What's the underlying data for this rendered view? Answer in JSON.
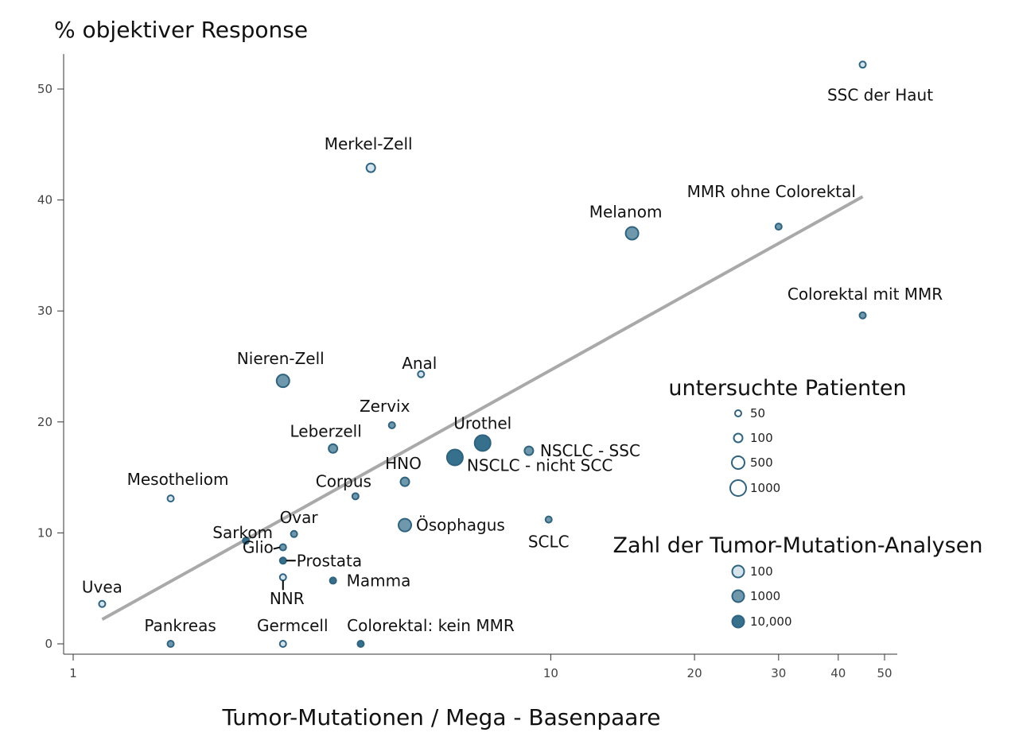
{
  "chart_data": {
    "type": "scatter",
    "ylabel": "% objektiver Response",
    "xlabel": "Tumor-Mutationen / Mega - Basenpaare",
    "x_scale": "log",
    "xlim": [
      1,
      50
    ],
    "ylim": [
      0,
      52
    ],
    "x_ticks": [
      1,
      10,
      20,
      30,
      40,
      50
    ],
    "y_ticks": [
      0,
      10,
      20,
      30,
      40,
      50
    ],
    "colors": {
      "edge": "#2f637f",
      "fill_low": "#d4e3ec",
      "fill_mid": "#6f98ad",
      "fill_high": "#36708c",
      "trend": "#a9a9a9"
    },
    "points": [
      {
        "label": "SSC der Haut",
        "x": 45.0,
        "y": 52.2,
        "patients": 50,
        "analyses": 100
      },
      {
        "label": "Merkel-Zell",
        "x": 4.2,
        "y": 42.9,
        "patients": 100,
        "analyses": 100
      },
      {
        "label": "MMR ohne Colorektal",
        "x": 30.0,
        "y": 37.6,
        "patients": 50,
        "analyses": 1000
      },
      {
        "label": "Melanom",
        "x": 14.8,
        "y": 37.0,
        "patients": 500,
        "analyses": 1000
      },
      {
        "label": "Colorektal mit MMR",
        "x": 45.0,
        "y": 29.6,
        "patients": 50,
        "analyses": 1000
      },
      {
        "label": "Nieren-Zell",
        "x": 2.75,
        "y": 23.7,
        "patients": 500,
        "analyses": 1000
      },
      {
        "label": "Anal",
        "x": 5.35,
        "y": 24.3,
        "patients": 50,
        "analyses": 100
      },
      {
        "label": "Zervix",
        "x": 4.65,
        "y": 19.7,
        "patients": 50,
        "analyses": 1000
      },
      {
        "label": "Leberzell",
        "x": 3.5,
        "y": 17.6,
        "patients": 100,
        "analyses": 1000
      },
      {
        "label": "Urothel",
        "x": 7.2,
        "y": 18.1,
        "patients": 1000,
        "analyses": 10000
      },
      {
        "label": "NSCLC - SSC",
        "x": 9.0,
        "y": 17.4,
        "patients": 100,
        "analyses": 1000
      },
      {
        "label": "NSCLC - nicht SCC",
        "x": 6.3,
        "y": 16.8,
        "patients": 1000,
        "analyses": 10000
      },
      {
        "label": "HNO",
        "x": 4.95,
        "y": 14.6,
        "patients": 100,
        "analyses": 1000
      },
      {
        "label": "Mesotheliom",
        "x": 1.6,
        "y": 13.1,
        "patients": 50,
        "analyses": 100
      },
      {
        "label": "Corpus",
        "x": 3.9,
        "y": 13.3,
        "patients": 50,
        "analyses": 1000
      },
      {
        "label": "SCLC",
        "x": 9.9,
        "y": 11.2,
        "patients": 50,
        "analyses": 1000
      },
      {
        "label": "Ösophagus",
        "x": 4.95,
        "y": 10.7,
        "patients": 500,
        "analyses": 1000
      },
      {
        "label": "Ovar",
        "x": 2.9,
        "y": 9.9,
        "patients": 50,
        "analyses": 1000
      },
      {
        "label": "Sarkom",
        "x": 2.3,
        "y": 9.3,
        "patients": 50,
        "analyses": 10000
      },
      {
        "label": "Glio",
        "x": 2.75,
        "y": 8.7,
        "patients": 50,
        "analyses": 1000
      },
      {
        "label": "Prostata",
        "x": 2.75,
        "y": 7.5,
        "patients": 50,
        "analyses": 10000
      },
      {
        "label": "NNR",
        "x": 2.75,
        "y": 6.0,
        "patients": 50,
        "analyses": 100
      },
      {
        "label": "Mamma",
        "x": 3.5,
        "y": 5.7,
        "patients": 50,
        "analyses": 10000
      },
      {
        "label": "Uvea",
        "x": 1.15,
        "y": 3.6,
        "patients": 50,
        "analyses": 100
      },
      {
        "label": "Pankreas",
        "x": 1.6,
        "y": 0.0,
        "patients": 50,
        "analyses": 1000
      },
      {
        "label": "Germcell",
        "x": 2.75,
        "y": 0.0,
        "patients": 50,
        "analyses": 100
      },
      {
        "label": "Colorektal: kein MMR",
        "x": 4.0,
        "y": 0.0,
        "patients": 50,
        "analyses": 10000
      }
    ],
    "trendline": {
      "x": [
        1.15,
        45.0
      ],
      "y": [
        2.2,
        40.3
      ]
    },
    "legend_patients": {
      "title": "untersuchte Patienten",
      "entries": [
        "50",
        "100",
        "500",
        "1000"
      ],
      "values": [
        50,
        100,
        500,
        1000
      ]
    },
    "legend_analyses": {
      "title": "Zahl der Tumor-Mutation-Analysen",
      "entries": [
        "100",
        "1000",
        "10,000"
      ],
      "values": [
        100,
        1000,
        10000
      ]
    }
  }
}
